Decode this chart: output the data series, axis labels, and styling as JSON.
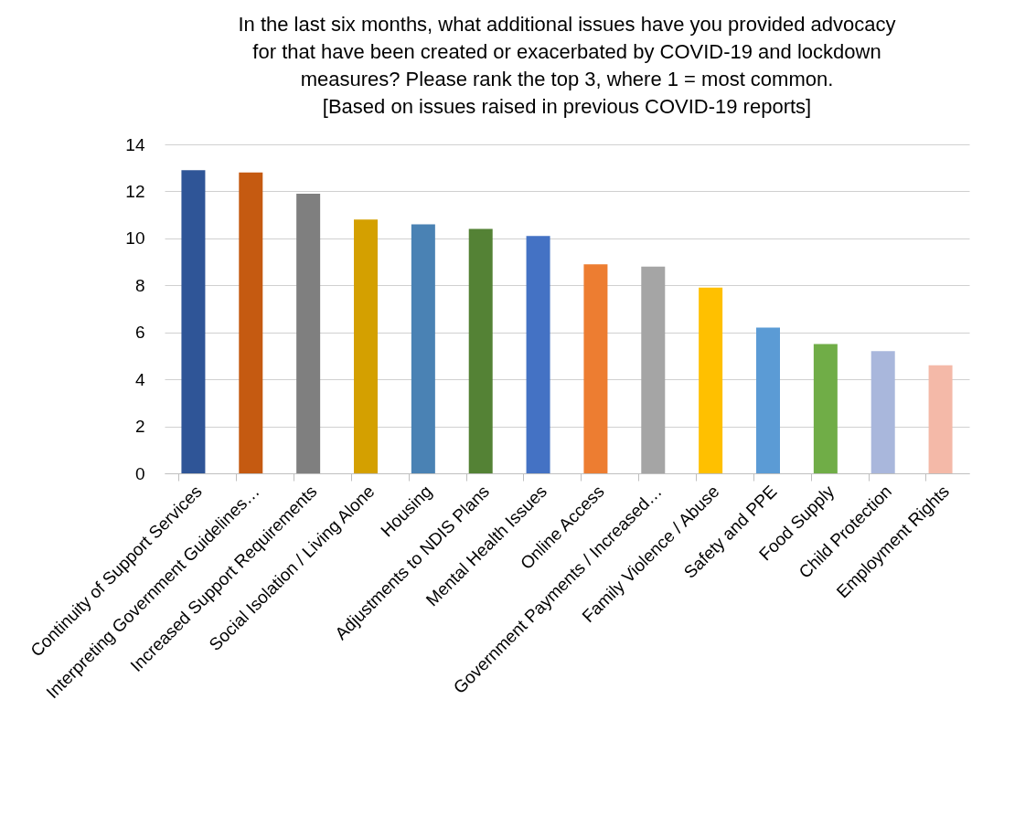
{
  "chart_data": {
    "type": "bar",
    "title": [
      "In the last six months, what additional issues have you provided advocacy",
      "for that have been created or exacerbated by COVID-19 and lockdown",
      "measures? Please rank the top 3, where 1 = most common.",
      "[Based on issues raised in previous COVID-19 reports]"
    ],
    "categories": [
      "Continuity of Support Services",
      "Interpreting Government Guidelines…",
      "Increased Support Requirements",
      "Social Isolation / Living Alone",
      "Housing",
      "Adjustments to NDIS Plans",
      "Mental Health Issues",
      "Online Access",
      "Government Payments / Increased…",
      "Family Violence / Abuse",
      "Safety and PPE",
      "Food Supply",
      "Child Protection",
      "Employment Rights"
    ],
    "values": [
      12.9,
      12.8,
      11.9,
      10.8,
      10.6,
      10.4,
      10.1,
      8.9,
      8.8,
      7.9,
      6.2,
      5.5,
      5.2,
      4.6
    ],
    "colors": [
      "#2f5597",
      "#c55a11",
      "#7f7f7f",
      "#d4a000",
      "#4a82b4",
      "#548235",
      "#4472c4",
      "#ed7d31",
      "#a5a5a5",
      "#ffc000",
      "#5b9bd5",
      "#70ad47",
      "#a9b7dc",
      "#f4b9a8"
    ],
    "ylim": [
      0,
      14
    ],
    "yticks": [
      0,
      2,
      4,
      6,
      8,
      10,
      12,
      14
    ],
    "grid": true,
    "legend": false
  }
}
